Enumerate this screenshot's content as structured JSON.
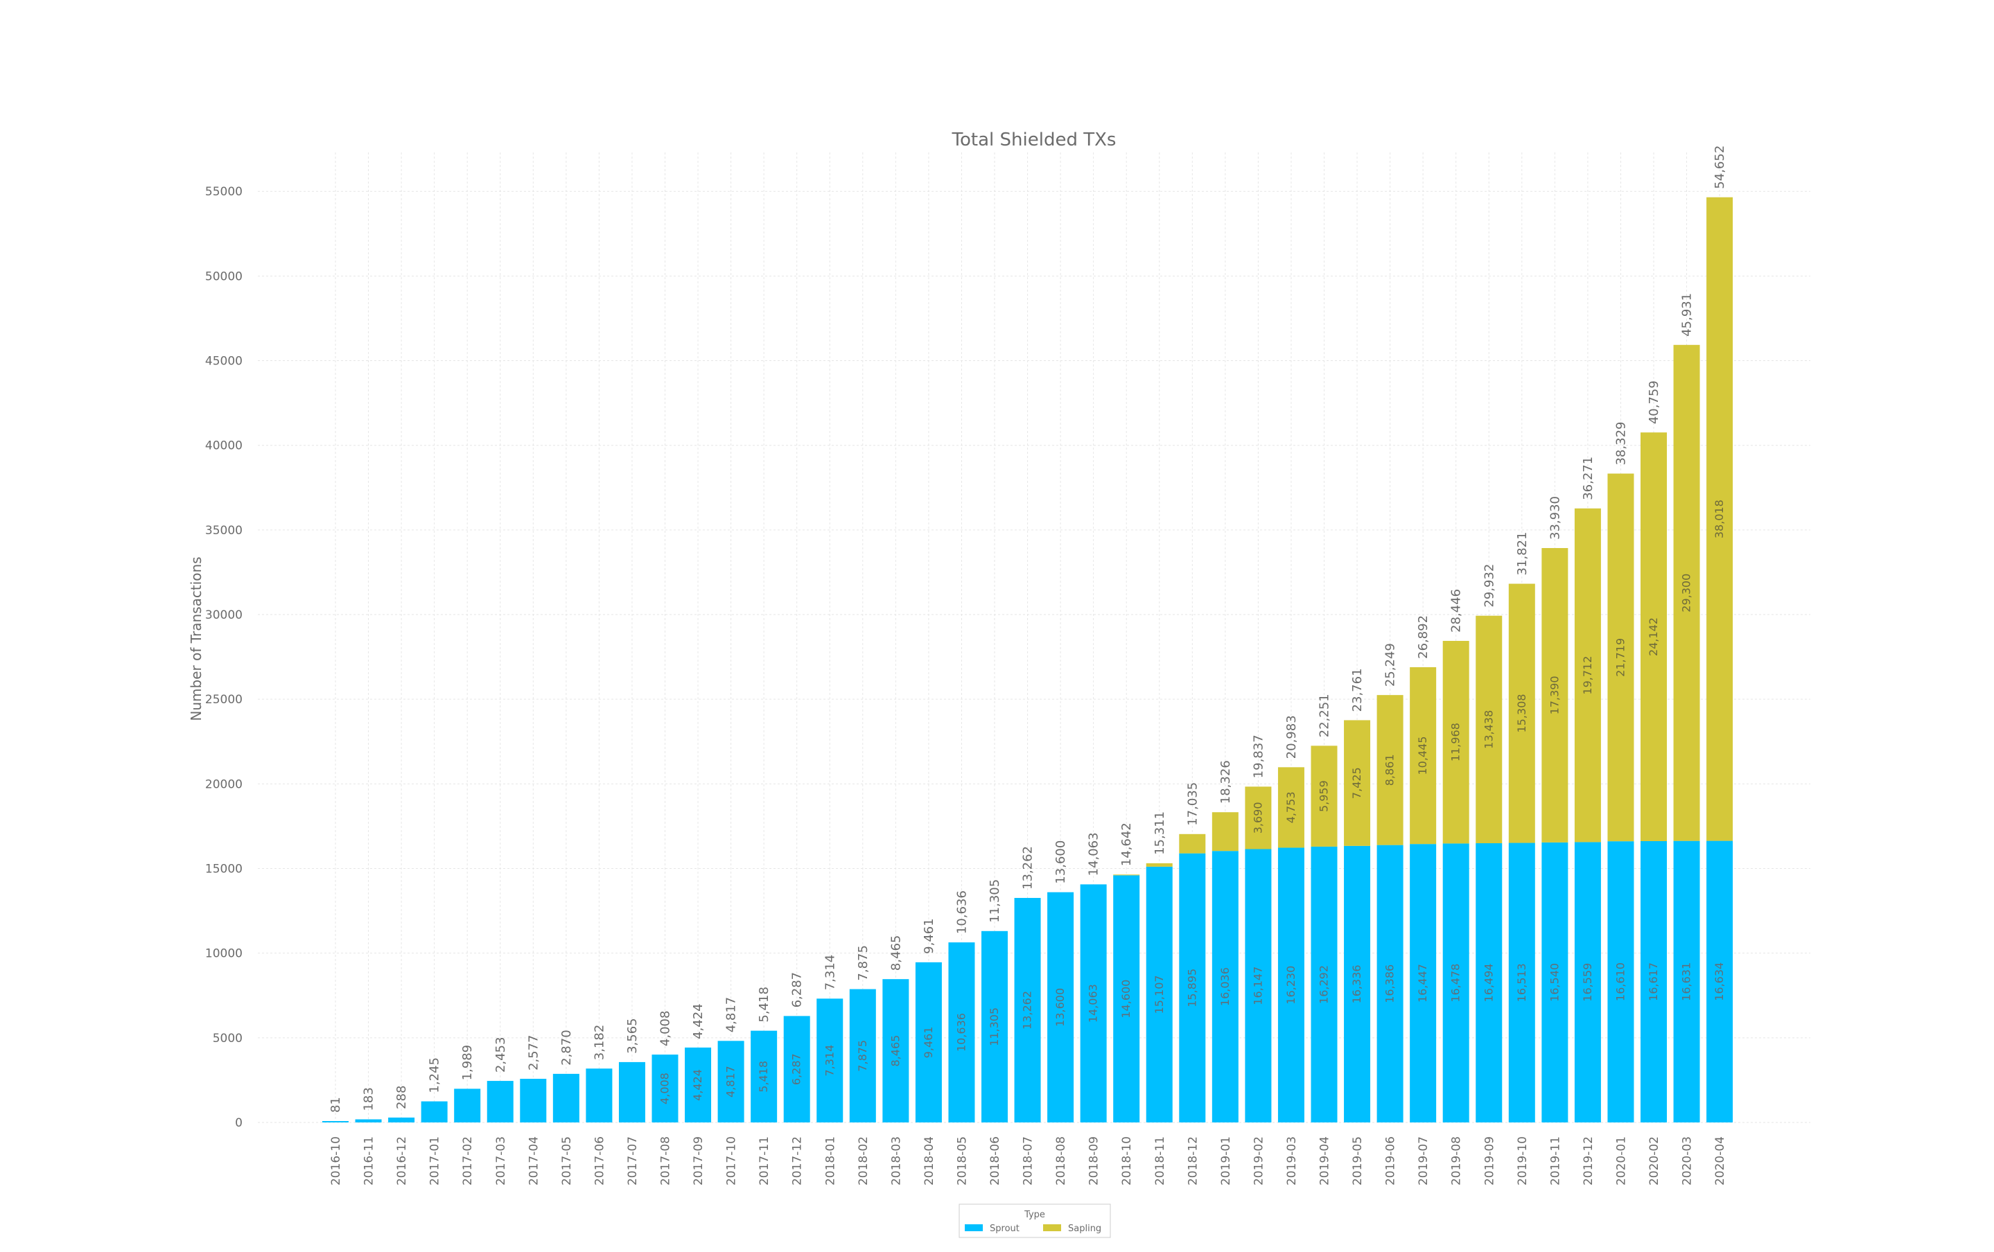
{
  "chart_data": {
    "type": "bar",
    "stacked": true,
    "title": "Total Shielded TXs",
    "ylabel": "Number of Transactions",
    "xlabel": "",
    "ylim": [
      0,
      57300
    ],
    "yticks": [
      0,
      5000,
      10000,
      15000,
      20000,
      25000,
      30000,
      35000,
      40000,
      45000,
      50000,
      55000
    ],
    "grid": true,
    "legend": {
      "title": "Type",
      "placement": "bottom-center"
    },
    "colors": {
      "Sprout": "#00bfff",
      "Sapling": "#d4c83a",
      "text": "#6b6b6b",
      "grid": "#e6e6e6"
    },
    "categories": [
      "2016-10",
      "2016-11",
      "2016-12",
      "2017-01",
      "2017-02",
      "2017-03",
      "2017-04",
      "2017-05",
      "2017-06",
      "2017-07",
      "2017-08",
      "2017-09",
      "2017-10",
      "2017-11",
      "2017-12",
      "2018-01",
      "2018-02",
      "2018-03",
      "2018-04",
      "2018-05",
      "2018-06",
      "2018-07",
      "2018-08",
      "2018-09",
      "2018-10",
      "2018-11",
      "2018-12",
      "2019-01",
      "2019-02",
      "2019-03",
      "2019-04",
      "2019-05",
      "2019-06",
      "2019-07",
      "2019-08",
      "2019-09",
      "2019-10",
      "2019-11",
      "2019-12",
      "2020-01",
      "2020-02",
      "2020-03",
      "2020-04"
    ],
    "series": [
      {
        "name": "Sprout",
        "values": [
          81,
          183,
          288,
          1245,
          1989,
          2453,
          2577,
          2870,
          3182,
          3565,
          4008,
          4424,
          4817,
          5418,
          6287,
          7314,
          7875,
          8465,
          9461,
          10636,
          11305,
          13262,
          13600,
          14063,
          14600,
          15107,
          15895,
          16036,
          16147,
          16230,
          16292,
          16336,
          16386,
          16447,
          16478,
          16494,
          16513,
          16540,
          16559,
          16610,
          16617,
          16631,
          16634
        ]
      },
      {
        "name": "Sapling",
        "values": [
          0,
          0,
          0,
          0,
          0,
          0,
          0,
          0,
          0,
          0,
          0,
          0,
          0,
          0,
          0,
          0,
          0,
          0,
          0,
          0,
          0,
          0,
          0,
          0,
          42,
          204,
          1140,
          2290,
          3690,
          4753,
          5959,
          7425,
          8861,
          10445,
          11968,
          13438,
          15308,
          17390,
          19712,
          21719,
          24142,
          29300,
          38018
        ]
      }
    ],
    "totals": [
      "81",
      "183",
      "288",
      "1,245",
      "1,989",
      "2,453",
      "2,577",
      "2,870",
      "3,182",
      "3,565",
      "4,008",
      "4,424",
      "4,817",
      "5,418",
      "6,287",
      "7,314",
      "7,875",
      "8,465",
      "9,461",
      "10,636",
      "11,305",
      "13,262",
      "13,600",
      "14,063",
      "14,642",
      "15,311",
      "17,035",
      "18,326",
      "19,837",
      "20,983",
      "22,251",
      "23,761",
      "25,249",
      "26,892",
      "28,446",
      "29,932",
      "31,821",
      "33,930",
      "36,271",
      "38,329",
      "40,759",
      "45,931",
      "54,652"
    ],
    "sprout_labels": [
      "",
      "",
      "",
      "",
      "",
      "",
      "",
      "",
      "",
      "",
      "4,008",
      "4,424",
      "4,817",
      "5,418",
      "6,287",
      "7,314",
      "7,875",
      "8,465",
      "9,461",
      "10,636",
      "11,305",
      "13,262",
      "13,600",
      "14,063",
      "14,600",
      "15,107",
      "15,895",
      "16,036",
      "16,147",
      "16,230",
      "16,292",
      "16,336",
      "16,386",
      "16,447",
      "16,478",
      "16,494",
      "16,513",
      "16,540",
      "16,559",
      "16,610",
      "16,617",
      "16,631",
      "16,634"
    ],
    "sapling_labels": [
      "",
      "",
      "",
      "",
      "",
      "",
      "",
      "",
      "",
      "",
      "",
      "",
      "",
      "",
      "",
      "",
      "",
      "",
      "",
      "",
      "",
      "",
      "",
      "",
      "",
      "",
      "",
      "",
      "3,690",
      "4,753",
      "5,959",
      "7,425",
      "8,861",
      "10,445",
      "11,968",
      "13,438",
      "15,308",
      "17,390",
      "19,712",
      "21,719",
      "24,142",
      "29,300",
      "38,018"
    ]
  }
}
